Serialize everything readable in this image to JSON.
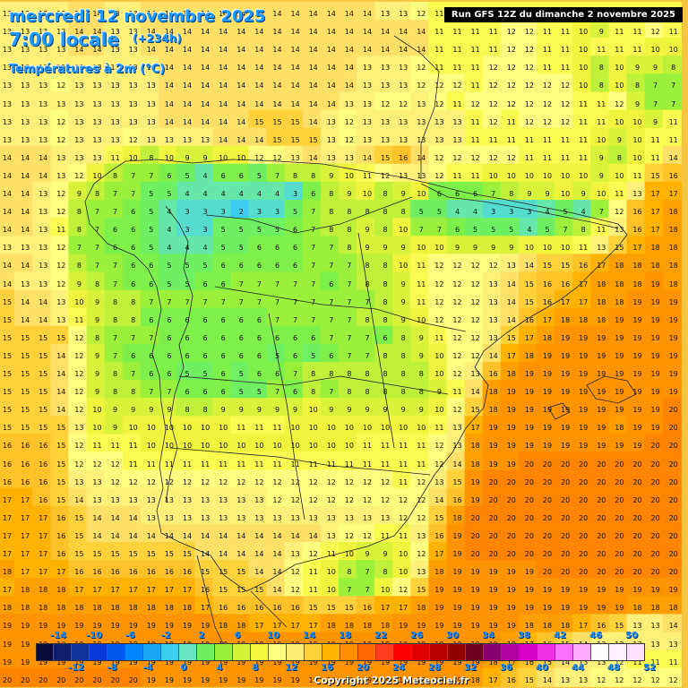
{
  "header": {
    "date_title": "mercredi 12 novembre 2025",
    "time_title": "7:00 locale",
    "lead_time": "(+234h)",
    "variable": "Températures à 2m (°C)",
    "run_info": "Run GFS 12Z du dimanche 2 novembre 2025"
  },
  "footer": {
    "copyright": "Copyright 2025 Meteociel.fr"
  },
  "legend": {
    "upper_ticks": [
      "-14",
      "-10",
      "-6",
      "-2",
      "2",
      "6",
      "10",
      "14",
      "18",
      "22",
      "26",
      "30",
      "34",
      "38",
      "42",
      "46",
      "50"
    ],
    "lower_ticks": [
      "-12",
      "-8",
      "-4",
      "0",
      "4",
      "8",
      "12",
      "16",
      "20",
      "24",
      "28",
      "32",
      "36",
      "40",
      "44",
      "48",
      "52"
    ],
    "colors": [
      "#0a0a3a",
      "#0f1f6e",
      "#10339c",
      "#0a37d6",
      "#0058f0",
      "#0085ff",
      "#18a6f5",
      "#3ccdf0",
      "#66e6c0",
      "#6ef062",
      "#9af03a",
      "#d4f23a",
      "#f5f53c",
      "#ffff80",
      "#ffec70",
      "#ffd23c",
      "#ffb300",
      "#ff8f00",
      "#ff6a00",
      "#ff3c1e",
      "#ff0000",
      "#e00000",
      "#b80000",
      "#900000",
      "#6e0020",
      "#8a0070",
      "#b000a0",
      "#d800c8",
      "#f030e8",
      "#ff70ff",
      "#ffa8ff",
      "#ffffff",
      "#fff0ff",
      "#ffe0ff"
    ]
  },
  "grid": {
    "rows": [
      [
        13,
        13,
        13,
        13,
        14,
        14,
        13,
        13,
        14,
        14,
        14,
        14,
        14,
        14,
        14,
        14,
        14,
        14,
        14,
        14,
        14,
        13,
        13,
        12,
        11,
        11,
        11,
        11,
        11,
        11,
        11,
        11,
        11,
        11,
        11,
        11,
        11,
        11
      ],
      [
        13,
        13,
        13,
        13,
        14,
        14,
        13,
        13,
        14,
        14,
        14,
        14,
        14,
        14,
        14,
        14,
        14,
        14,
        14,
        14,
        14,
        14,
        14,
        14,
        11,
        11,
        11,
        11,
        12,
        12,
        11,
        11,
        10,
        9,
        11,
        11,
        12,
        11
      ],
      [
        13,
        13,
        13,
        13,
        14,
        14,
        13,
        13,
        14,
        14,
        14,
        14,
        14,
        14,
        14,
        14,
        14,
        14,
        14,
        14,
        14,
        14,
        14,
        14,
        11,
        11,
        11,
        11,
        12,
        12,
        11,
        11,
        10,
        11,
        11,
        11,
        10,
        10
      ],
      [
        13,
        13,
        13,
        13,
        13,
        13,
        13,
        13,
        13,
        14,
        14,
        14,
        14,
        14,
        14,
        14,
        14,
        14,
        14,
        14,
        13,
        13,
        13,
        12,
        11,
        11,
        11,
        12,
        12,
        12,
        11,
        11,
        10,
        8,
        10,
        9,
        9,
        8
      ],
      [
        13,
        13,
        13,
        12,
        13,
        13,
        13,
        13,
        13,
        14,
        14,
        14,
        14,
        14,
        14,
        14,
        14,
        14,
        14,
        14,
        13,
        13,
        13,
        12,
        12,
        12,
        11,
        12,
        12,
        12,
        12,
        12,
        10,
        8,
        10,
        8,
        7,
        7
      ],
      [
        13,
        13,
        13,
        13,
        13,
        13,
        13,
        13,
        13,
        14,
        14,
        14,
        14,
        14,
        14,
        14,
        14,
        14,
        14,
        13,
        13,
        12,
        12,
        13,
        12,
        11,
        12,
        12,
        12,
        12,
        12,
        12,
        11,
        11,
        12,
        9,
        7,
        7
      ],
      [
        13,
        13,
        13,
        12,
        13,
        13,
        13,
        13,
        13,
        14,
        14,
        14,
        14,
        14,
        15,
        15,
        15,
        14,
        13,
        12,
        13,
        13,
        13,
        13,
        13,
        13,
        11,
        12,
        11,
        12,
        12,
        12,
        11,
        11,
        10,
        10,
        9,
        11
      ],
      [
        13,
        13,
        13,
        12,
        13,
        13,
        13,
        12,
        13,
        13,
        13,
        13,
        14,
        14,
        14,
        15,
        15,
        15,
        13,
        12,
        13,
        13,
        13,
        13,
        13,
        13,
        11,
        11,
        11,
        11,
        11,
        11,
        11,
        10,
        9,
        10,
        11,
        11
      ],
      [
        14,
        14,
        14,
        13,
        13,
        13,
        11,
        10,
        8,
        10,
        9,
        9,
        10,
        10,
        12,
        12,
        13,
        14,
        13,
        13,
        14,
        15,
        16,
        14,
        12,
        12,
        12,
        12,
        12,
        11,
        11,
        11,
        11,
        9,
        8,
        10,
        11,
        14
      ],
      [
        14,
        14,
        14,
        13,
        12,
        10,
        8,
        7,
        7,
        6,
        5,
        4,
        6,
        6,
        5,
        7,
        8,
        8,
        9,
        10,
        11,
        12,
        13,
        13,
        12,
        11,
        11,
        10,
        10,
        10,
        10,
        10,
        10,
        9,
        10,
        11,
        15,
        16
      ],
      [
        14,
        14,
        13,
        12,
        9,
        8,
        7,
        7,
        5,
        5,
        4,
        4,
        4,
        4,
        4,
        4,
        3,
        6,
        8,
        9,
        10,
        8,
        9,
        10,
        6,
        6,
        6,
        7,
        8,
        9,
        9,
        10,
        9,
        10,
        11,
        13,
        17,
        17
      ],
      [
        14,
        14,
        13,
        12,
        8,
        7,
        7,
        6,
        5,
        4,
        3,
        3,
        3,
        2,
        3,
        3,
        5,
        7,
        8,
        8,
        8,
        8,
        8,
        5,
        5,
        4,
        4,
        3,
        3,
        3,
        4,
        5,
        4,
        7,
        12,
        16,
        17,
        18
      ],
      [
        14,
        14,
        13,
        11,
        8,
        7,
        6,
        6,
        5,
        4,
        3,
        3,
        5,
        5,
        5,
        5,
        6,
        7,
        8,
        8,
        9,
        8,
        10,
        7,
        7,
        6,
        5,
        5,
        5,
        4,
        5,
        7,
        8,
        11,
        13,
        16,
        17,
        18
      ],
      [
        13,
        13,
        13,
        12,
        7,
        7,
        6,
        6,
        5,
        4,
        4,
        4,
        5,
        5,
        6,
        6,
        6,
        7,
        7,
        8,
        9,
        9,
        9,
        10,
        10,
        9,
        9,
        9,
        9,
        10,
        10,
        10,
        11,
        13,
        15,
        17,
        18,
        18
      ],
      [
        14,
        14,
        13,
        12,
        8,
        7,
        7,
        6,
        6,
        5,
        5,
        5,
        6,
        6,
        6,
        6,
        6,
        7,
        7,
        7,
        8,
        8,
        10,
        11,
        12,
        12,
        12,
        12,
        13,
        14,
        15,
        15,
        16,
        17,
        18,
        18,
        18,
        18
      ],
      [
        14,
        13,
        13,
        12,
        9,
        8,
        7,
        6,
        6,
        5,
        5,
        6,
        6,
        7,
        7,
        7,
        7,
        7,
        6,
        7,
        8,
        8,
        9,
        11,
        12,
        12,
        12,
        13,
        14,
        15,
        16,
        16,
        17,
        18,
        18,
        18,
        19,
        18
      ],
      [
        15,
        14,
        14,
        13,
        10,
        9,
        8,
        8,
        7,
        7,
        7,
        7,
        7,
        7,
        7,
        7,
        7,
        7,
        7,
        7,
        7,
        8,
        9,
        11,
        12,
        12,
        12,
        13,
        14,
        15,
        16,
        17,
        17,
        18,
        18,
        19,
        19,
        19
      ],
      [
        15,
        14,
        14,
        13,
        11,
        9,
        8,
        8,
        6,
        6,
        6,
        6,
        6,
        6,
        6,
        7,
        7,
        7,
        7,
        7,
        8,
        8,
        9,
        10,
        12,
        12,
        12,
        13,
        14,
        16,
        17,
        18,
        18,
        18,
        19,
        19,
        19,
        19
      ],
      [
        15,
        15,
        15,
        15,
        12,
        8,
        7,
        7,
        7,
        6,
        6,
        6,
        6,
        6,
        6,
        6,
        6,
        6,
        7,
        7,
        7,
        6,
        8,
        9,
        11,
        12,
        12,
        13,
        15,
        17,
        18,
        19,
        19,
        19,
        19,
        19,
        19,
        19
      ],
      [
        15,
        15,
        15,
        14,
        12,
        9,
        7,
        6,
        6,
        6,
        6,
        6,
        6,
        6,
        6,
        5,
        6,
        5,
        6,
        7,
        7,
        8,
        8,
        9,
        10,
        12,
        12,
        14,
        17,
        18,
        19,
        19,
        19,
        19,
        19,
        19,
        19,
        19
      ],
      [
        15,
        15,
        15,
        14,
        12,
        9,
        8,
        7,
        6,
        6,
        5,
        5,
        6,
        5,
        6,
        6,
        7,
        8,
        8,
        8,
        8,
        8,
        8,
        8,
        10,
        12,
        13,
        16,
        18,
        19,
        19,
        19,
        19,
        19,
        19,
        19,
        19,
        19
      ],
      [
        15,
        15,
        15,
        14,
        12,
        9,
        8,
        8,
        7,
        7,
        6,
        6,
        6,
        5,
        5,
        7,
        6,
        8,
        7,
        8,
        8,
        8,
        8,
        8,
        9,
        11,
        14,
        18,
        19,
        19,
        19,
        19,
        19,
        19,
        19,
        19,
        19,
        19
      ],
      [
        15,
        15,
        15,
        14,
        12,
        10,
        9,
        9,
        9,
        9,
        8,
        8,
        9,
        9,
        9,
        9,
        9,
        10,
        9,
        9,
        9,
        9,
        9,
        9,
        10,
        12,
        15,
        18,
        19,
        19,
        19,
        19,
        19,
        19,
        19,
        19,
        19,
        20
      ],
      [
        15,
        15,
        15,
        15,
        13,
        10,
        9,
        10,
        10,
        10,
        10,
        10,
        10,
        11,
        11,
        11,
        10,
        10,
        10,
        10,
        10,
        10,
        10,
        10,
        11,
        13,
        17,
        19,
        19,
        19,
        19,
        19,
        19,
        19,
        18,
        19,
        19,
        20
      ],
      [
        16,
        16,
        16,
        15,
        12,
        11,
        11,
        11,
        10,
        10,
        10,
        10,
        10,
        10,
        10,
        10,
        10,
        10,
        10,
        10,
        11,
        11,
        11,
        11,
        12,
        13,
        18,
        19,
        19,
        19,
        19,
        19,
        19,
        19,
        19,
        19,
        20,
        20
      ],
      [
        16,
        16,
        16,
        15,
        12,
        12,
        12,
        11,
        11,
        11,
        11,
        11,
        11,
        11,
        11,
        11,
        11,
        11,
        11,
        11,
        11,
        11,
        11,
        11,
        12,
        14,
        18,
        19,
        19,
        20,
        20,
        20,
        20,
        20,
        20,
        20,
        20,
        20
      ],
      [
        16,
        16,
        16,
        15,
        13,
        13,
        12,
        12,
        12,
        12,
        12,
        12,
        12,
        12,
        12,
        12,
        12,
        12,
        12,
        12,
        12,
        12,
        11,
        12,
        13,
        15,
        19,
        20,
        20,
        20,
        20,
        20,
        20,
        20,
        20,
        20,
        20,
        20
      ],
      [
        17,
        17,
        16,
        15,
        14,
        13,
        13,
        13,
        13,
        13,
        13,
        13,
        13,
        13,
        13,
        12,
        12,
        12,
        12,
        12,
        12,
        12,
        12,
        12,
        14,
        16,
        19,
        20,
        20,
        20,
        20,
        20,
        20,
        20,
        20,
        20,
        20,
        20
      ],
      [
        17,
        17,
        17,
        16,
        15,
        14,
        14,
        14,
        13,
        13,
        13,
        13,
        13,
        13,
        13,
        13,
        13,
        13,
        13,
        13,
        13,
        13,
        12,
        12,
        15,
        18,
        20,
        20,
        20,
        20,
        20,
        20,
        20,
        20,
        20,
        20,
        20,
        20
      ],
      [
        17,
        17,
        17,
        16,
        15,
        14,
        14,
        14,
        14,
        14,
        14,
        14,
        14,
        14,
        14,
        14,
        14,
        14,
        13,
        12,
        12,
        11,
        11,
        13,
        16,
        19,
        20,
        20,
        20,
        20,
        20,
        20,
        20,
        20,
        20,
        20,
        20,
        20
      ],
      [
        17,
        17,
        17,
        16,
        15,
        15,
        15,
        15,
        15,
        15,
        15,
        14,
        14,
        14,
        14,
        14,
        13,
        12,
        11,
        10,
        9,
        9,
        10,
        12,
        17,
        19,
        20,
        20,
        20,
        20,
        20,
        20,
        20,
        20,
        20,
        20,
        20,
        20
      ],
      [
        18,
        17,
        17,
        17,
        16,
        16,
        16,
        16,
        16,
        16,
        16,
        15,
        15,
        15,
        14,
        14,
        12,
        11,
        10,
        8,
        7,
        8,
        10,
        13,
        18,
        19,
        19,
        19,
        19,
        19,
        20,
        20,
        20,
        20,
        20,
        20,
        20,
        20
      ],
      [
        17,
        18,
        18,
        18,
        17,
        17,
        17,
        17,
        17,
        17,
        17,
        16,
        15,
        15,
        15,
        14,
        12,
        11,
        10,
        7,
        7,
        10,
        12,
        15,
        19,
        19,
        19,
        19,
        19,
        19,
        19,
        19,
        19,
        19,
        19,
        19,
        19,
        19
      ],
      [
        18,
        18,
        18,
        18,
        18,
        18,
        18,
        18,
        18,
        18,
        18,
        17,
        16,
        16,
        16,
        16,
        16,
        15,
        15,
        15,
        16,
        17,
        17,
        18,
        19,
        19,
        19,
        19,
        19,
        19,
        19,
        19,
        19,
        19,
        19,
        18,
        18,
        18
      ],
      [
        19,
        19,
        19,
        19,
        19,
        19,
        19,
        19,
        19,
        19,
        19,
        19,
        18,
        18,
        17,
        17,
        17,
        17,
        18,
        18,
        18,
        18,
        19,
        19,
        19,
        19,
        19,
        19,
        19,
        18,
        18,
        18,
        17,
        16,
        15,
        13,
        13,
        14
      ],
      [
        19,
        19,
        19,
        19,
        19,
        19,
        19,
        19,
        19,
        19,
        19,
        19,
        19,
        19,
        19,
        19,
        19,
        19,
        19,
        19,
        19,
        19,
        19,
        19,
        19,
        19,
        19,
        19,
        18,
        17,
        16,
        15,
        14,
        13,
        13,
        13,
        13,
        13
      ],
      [
        19,
        19,
        19,
        19,
        19,
        19,
        19,
        19,
        19,
        19,
        19,
        19,
        19,
        19,
        19,
        19,
        19,
        19,
        19,
        19,
        19,
        19,
        19,
        19,
        19,
        19,
        19,
        18,
        17,
        16,
        15,
        14,
        13,
        13,
        12,
        11,
        11,
        11
      ],
      [
        20,
        20,
        20,
        20,
        20,
        20,
        20,
        20,
        19,
        19,
        19,
        19,
        19,
        19,
        19,
        19,
        19,
        19,
        19,
        19,
        19,
        19,
        19,
        19,
        19,
        19,
        18,
        17,
        16,
        15,
        14,
        13,
        13,
        12,
        12,
        12,
        12,
        12
      ]
    ]
  }
}
